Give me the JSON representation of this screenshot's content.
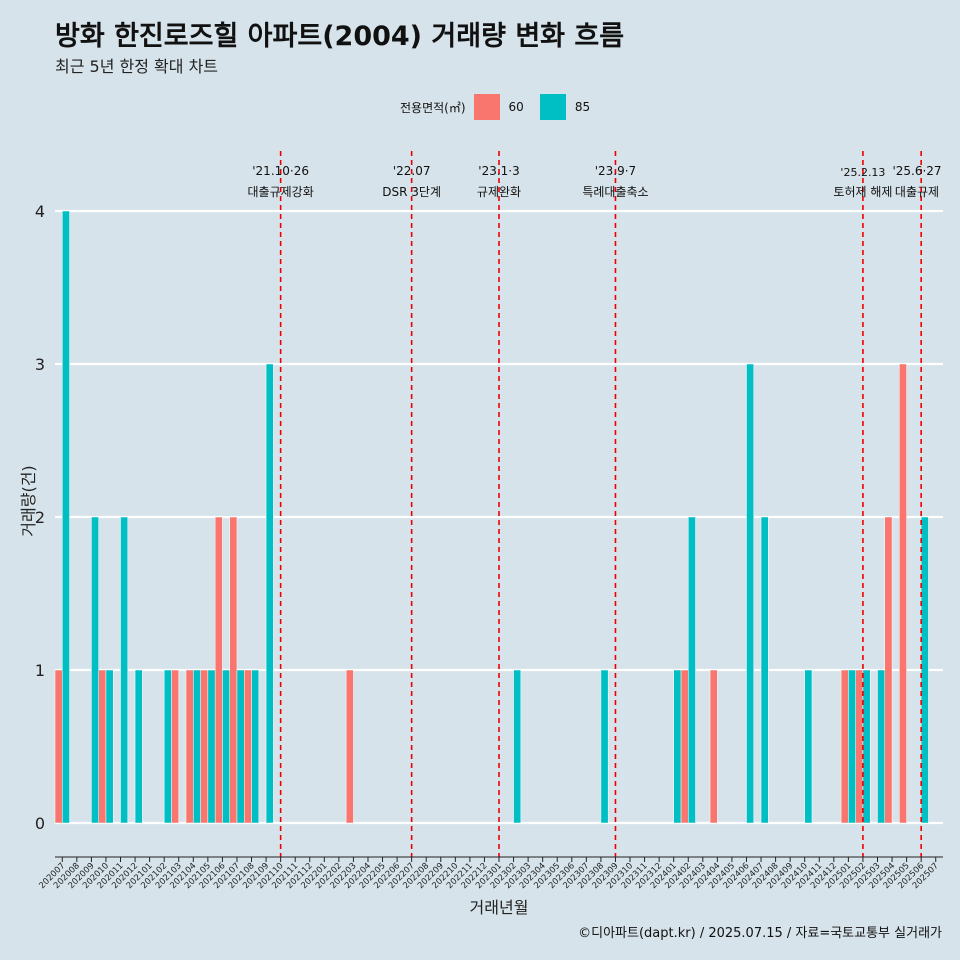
{
  "title": "방화 한진로즈힐 아파트(2004) 거래량 변화 흐름",
  "subtitle": "최근 5년 한정 확대 차트",
  "legend": {
    "title": "전용면적(㎡)",
    "items": [
      {
        "label": "60",
        "color": "#f8766d"
      },
      {
        "label": "85",
        "color": "#00bfc4"
      }
    ]
  },
  "caption": "©디아파트(dapt.kr) / 2025.07.15 / 자료=국토교통부 실거래가",
  "chart_data": {
    "type": "bar",
    "xlabel": "거래년월",
    "ylabel": "거래량(건)",
    "ylim": [
      0,
      4
    ],
    "yticks": [
      0,
      1,
      2,
      3,
      4
    ],
    "categories": [
      "202007",
      "202008",
      "202009",
      "202010",
      "202011",
      "202012",
      "202101",
      "202102",
      "202103",
      "202104",
      "202105",
      "202106",
      "202107",
      "202108",
      "202109",
      "202110",
      "202111",
      "202112",
      "202201",
      "202202",
      "202203",
      "202204",
      "202205",
      "202206",
      "202207",
      "202208",
      "202209",
      "202210",
      "202211",
      "202212",
      "202301",
      "202302",
      "202303",
      "202304",
      "202305",
      "202306",
      "202307",
      "202308",
      "202309",
      "202310",
      "202311",
      "202312",
      "202401",
      "202402",
      "202403",
      "202404",
      "202405",
      "202406",
      "202407",
      "202408",
      "202409",
      "202410",
      "202411",
      "202412",
      "202501",
      "202502",
      "202503",
      "202504",
      "202505",
      "202506",
      "202507"
    ],
    "series": [
      {
        "name": "60",
        "color": "#f8766d",
        "values": [
          1,
          0,
          0,
          1,
          0,
          0,
          0,
          0,
          1,
          1,
          1,
          2,
          2,
          1,
          0,
          0,
          0,
          0,
          0,
          0,
          1,
          0,
          0,
          0,
          0,
          0,
          0,
          0,
          0,
          0,
          0,
          0,
          0,
          0,
          0,
          0,
          0,
          0,
          0,
          0,
          0,
          0,
          0,
          1,
          0,
          1,
          0,
          0,
          0,
          0,
          0,
          0,
          0,
          0,
          1,
          1,
          0,
          2,
          3,
          0,
          0
        ]
      },
      {
        "name": "85",
        "color": "#00bfc4",
        "values": [
          4,
          0,
          2,
          1,
          2,
          1,
          0,
          1,
          0,
          1,
          1,
          1,
          1,
          1,
          3,
          0,
          0,
          0,
          0,
          0,
          0,
          0,
          0,
          0,
          0,
          0,
          0,
          0,
          0,
          0,
          0,
          1,
          0,
          0,
          0,
          0,
          0,
          1,
          0,
          0,
          0,
          0,
          1,
          2,
          0,
          0,
          0,
          3,
          2,
          0,
          0,
          1,
          0,
          0,
          1,
          1,
          1,
          0,
          0,
          2,
          0
        ]
      }
    ],
    "events": [
      {
        "month": "202110",
        "date": "'21.10·26",
        "label": "대출규제강화"
      },
      {
        "month": "202207",
        "date": "'22.07",
        "label": "DSR 3단계"
      },
      {
        "month": "202301",
        "date": "'23.1·3",
        "label": "규제완화"
      },
      {
        "month": "202309",
        "date": "'23.9·7",
        "label": "특례대출축소"
      },
      {
        "month": "202502",
        "date": "'25.2.13",
        "label": "토허제 해제"
      },
      {
        "month": "202506",
        "date": "'25.6·27",
        "label": "대출규제"
      }
    ]
  }
}
